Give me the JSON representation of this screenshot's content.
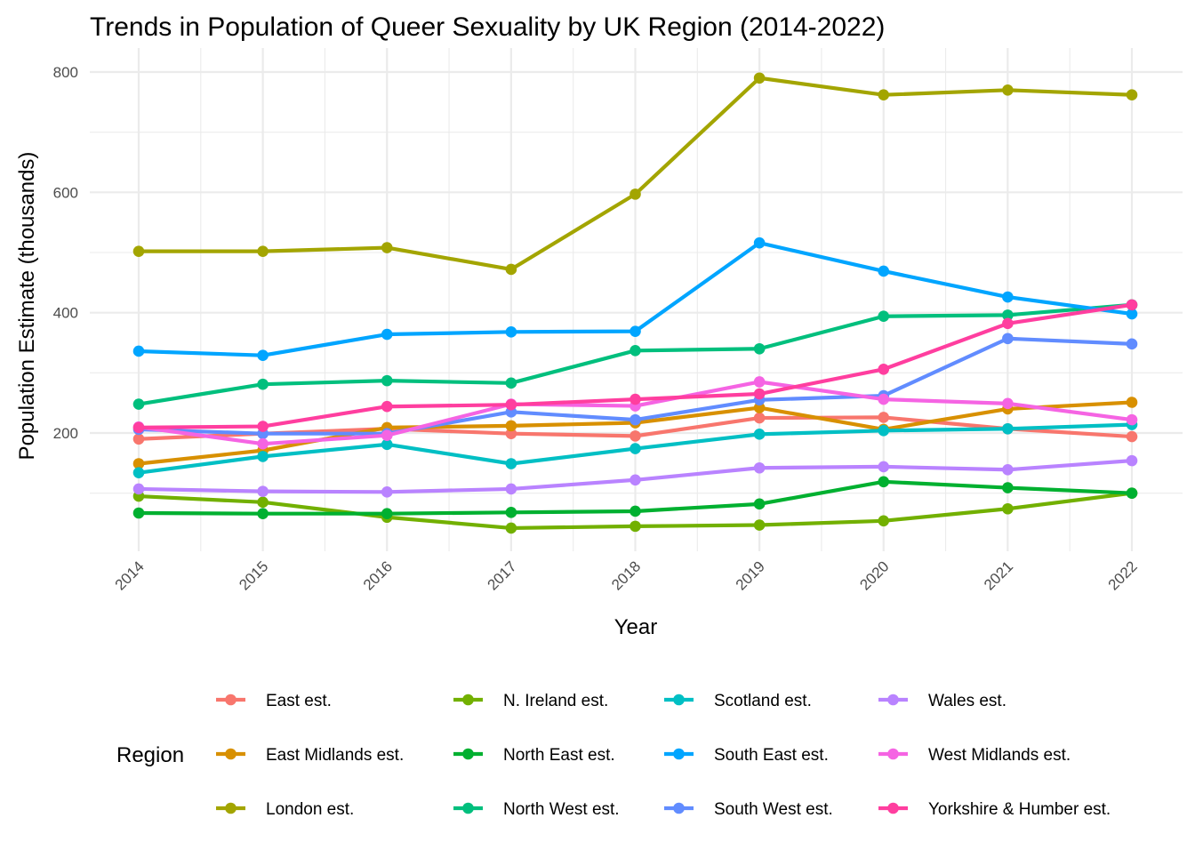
{
  "chart_data": {
    "type": "line",
    "title": "Trends in Population of Queer Sexuality by UK Region (2014-2022)",
    "xlabel": "Year",
    "ylabel": "Population Estimate (thousands)",
    "x": [
      "2014",
      "2015",
      "2016",
      "2017",
      "2018",
      "2019",
      "2020",
      "2021",
      "2022"
    ],
    "ylim": [
      35,
      805
    ],
    "yticks": [
      "200",
      "400",
      "600",
      "800"
    ],
    "grid": true,
    "legend": {
      "title": "Region",
      "position": "bottom"
    },
    "series": [
      {
        "name": "East est.",
        "color": "#F8766D",
        "values": [
          190,
          199,
          207,
          199,
          195,
          225,
          226,
          207,
          194
        ]
      },
      {
        "name": "East Midlands est.",
        "color": "#D89000",
        "values": [
          149,
          171,
          209,
          212,
          217,
          242,
          206,
          240,
          251
        ]
      },
      {
        "name": "London est.",
        "color": "#A3A500",
        "values": [
          502,
          502,
          508,
          472,
          597,
          790,
          762,
          770,
          762
        ]
      },
      {
        "name": "N. Ireland est.",
        "color": "#72B000",
        "values": [
          95,
          85,
          60,
          42,
          45,
          47,
          54,
          74,
          100
        ]
      },
      {
        "name": "North East est.",
        "color": "#00B030",
        "values": [
          67,
          66,
          66,
          68,
          70,
          82,
          119,
          109,
          100
        ]
      },
      {
        "name": "North West est.",
        "color": "#00BF7D",
        "values": [
          248,
          281,
          287,
          283,
          337,
          340,
          394,
          396,
          413
        ]
      },
      {
        "name": "Scotland est.",
        "color": "#00BFC4",
        "values": [
          134,
          161,
          181,
          149,
          174,
          198,
          204,
          207,
          214
        ]
      },
      {
        "name": "South East est.",
        "color": "#00A5FF",
        "values": [
          336,
          329,
          364,
          368,
          369,
          516,
          469,
          426,
          398
        ]
      },
      {
        "name": "South West est.",
        "color": "#618CFF",
        "values": [
          206,
          199,
          199,
          235,
          222,
          255,
          262,
          357,
          348
        ]
      },
      {
        "name": "Wales est.",
        "color": "#B983FF",
        "values": [
          107,
          103,
          102,
          107,
          122,
          142,
          144,
          139,
          154
        ]
      },
      {
        "name": "West Midlands est.",
        "color": "#F564E3",
        "values": [
          210,
          182,
          196,
          248,
          245,
          285,
          256,
          249,
          222
        ]
      },
      {
        "name": "Yorkshire & Humber est.",
        "color": "#FF3E9F",
        "values": [
          209,
          211,
          244,
          247,
          256,
          265,
          306,
          382,
          413
        ]
      }
    ]
  }
}
